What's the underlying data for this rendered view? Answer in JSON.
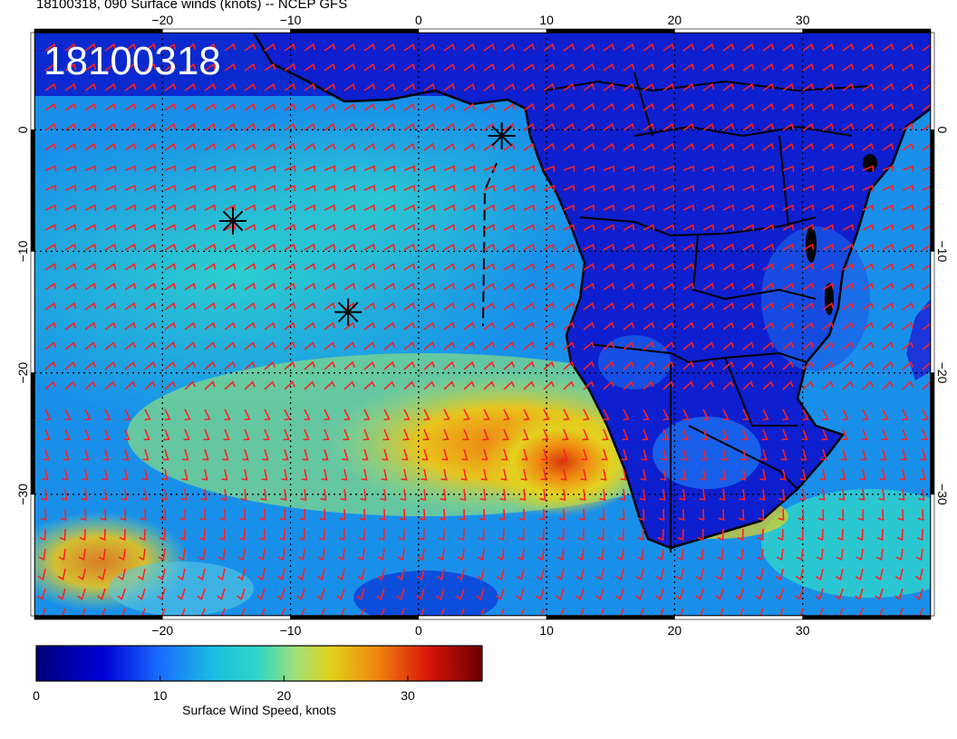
{
  "header": {
    "title": "18100318, 090 Surface winds (knots) -- NCEP GFS",
    "stamp": "18100318"
  },
  "map": {
    "lon_range": [
      -30,
      40
    ],
    "lat_range": [
      -40,
      8
    ],
    "lon_ticks": [
      "−20",
      "−10",
      "0",
      "10",
      "20",
      "30"
    ],
    "lat_ticks": [
      "0",
      "−10",
      "−20",
      "−30"
    ],
    "wind_barb_color": "#ff2020",
    "markers": [
      {
        "name": "star",
        "lon": 6.5,
        "lat": -0.5
      },
      {
        "name": "star",
        "lon": -14.5,
        "lat": -7.5
      },
      {
        "name": "star",
        "lon": -5.5,
        "lat": -15
      }
    ]
  },
  "colorbar": {
    "ticks": [
      "0",
      "10",
      "20",
      "30"
    ],
    "label": "Surface Wind Speed, knots",
    "range": [
      0,
      36
    ]
  }
}
